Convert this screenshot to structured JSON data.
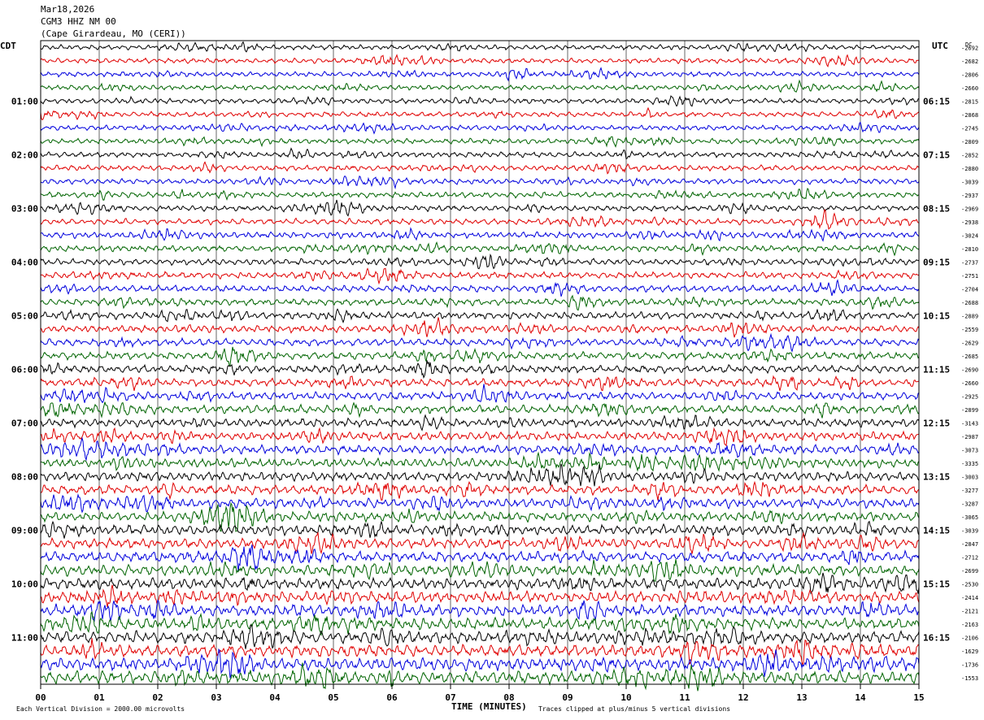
{
  "header": {
    "date": "Mar18,2026",
    "station": "CGM3 HHZ NM 00",
    "location": "(Cape Girardeau, MO (CERI))"
  },
  "chart_data": {
    "type": "seismogram",
    "title": "CGM3 HHZ NM 00",
    "left_axis_title": "CDT",
    "right_axis_title": "UTC",
    "dc_label": "DC",
    "xlabel": "TIME (MINUTES)",
    "xlim": [
      0,
      15
    ],
    "x_ticks": [
      "00",
      "01",
      "02",
      "03",
      "04",
      "05",
      "06",
      "07",
      "08",
      "09",
      "10",
      "11",
      "12",
      "13",
      "14",
      "15"
    ],
    "left_hour_labels": [
      {
        "row": 4,
        "text": "01:00"
      },
      {
        "row": 8,
        "text": "02:00"
      },
      {
        "row": 12,
        "text": "03:00"
      },
      {
        "row": 16,
        "text": "04:00"
      },
      {
        "row": 20,
        "text": "05:00"
      },
      {
        "row": 24,
        "text": "06:00"
      },
      {
        "row": 28,
        "text": "07:00"
      },
      {
        "row": 32,
        "text": "08:00"
      },
      {
        "row": 36,
        "text": "09:00"
      },
      {
        "row": 40,
        "text": "10:00"
      },
      {
        "row": 44,
        "text": "11:00"
      }
    ],
    "right_hour_labels": [
      {
        "row": 4,
        "text": "06:15"
      },
      {
        "row": 8,
        "text": "07:15"
      },
      {
        "row": 12,
        "text": "08:15"
      },
      {
        "row": 16,
        "text": "09:15"
      },
      {
        "row": 20,
        "text": "10:15"
      },
      {
        "row": 24,
        "text": "11:15"
      },
      {
        "row": 28,
        "text": "12:15"
      },
      {
        "row": 32,
        "text": "13:15"
      },
      {
        "row": 36,
        "text": "14:15"
      },
      {
        "row": 40,
        "text": "15:15"
      },
      {
        "row": 44,
        "text": "16:15"
      }
    ],
    "trace_colors": [
      "#000000",
      "#e00000",
      "#0000dd",
      "#006400"
    ],
    "dc_offsets": [
      "-2692",
      "-2682",
      "-2806",
      "-2660",
      "-2815",
      "-2868",
      "-2745",
      "-2809",
      "-2852",
      "-2880",
      "-3039",
      "-2937",
      "-2969",
      "-2938",
      "-3024",
      "-2810",
      "-2737",
      "-2751",
      "-2704",
      "-2688",
      "-2889",
      "-2559",
      "-2629",
      "-2685",
      "-2690",
      "-2660",
      "-2925",
      "-2899",
      "-3143",
      "-2987",
      "-3073",
      "-3335",
      "-3003",
      "-3277",
      "-3287",
      "-3065",
      "-3039",
      "-2847",
      "-2712",
      "-2699",
      "-2530",
      "-2414",
      "-2121",
      "-2163",
      "-2106",
      "-1629",
      "-1736",
      "-1553"
    ],
    "footer_left": "Each Vertical Division = 2000.00 microvolts",
    "footer_right": "Traces clipped at plus/minus 5 vertical divisions"
  }
}
